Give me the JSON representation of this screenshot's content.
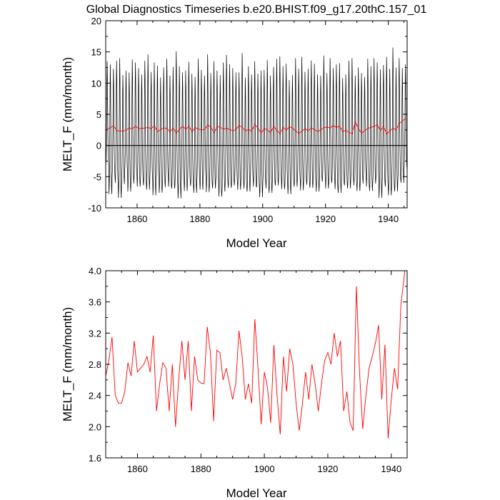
{
  "figure": {
    "title": "Global Diagnostics Timeseries b.e20.BHIST.f09_g17.20thC.157_01"
  },
  "chart_data": [
    {
      "type": "line",
      "title": "Global Diagnostics Timeseries b.e20.BHIST.f09_g17.20thC.157_01",
      "xlabel": "Model Year",
      "ylabel": "MELT_F (mm/month)",
      "xlim": [
        1850,
        1946
      ],
      "ylim": [
        -10,
        20
      ],
      "xticks": [
        1860,
        1880,
        1900,
        1920,
        1940
      ],
      "yticks": [
        -10,
        -5,
        0,
        5,
        10,
        15,
        20
      ],
      "zero_line": true,
      "series": [
        {
          "kind": "monthly",
          "color": "#000000",
          "x_start": 1850.04,
          "step": 0.08333,
          "peaks": [
            13.5,
            13.0,
            12.3,
            13.6,
            14.0,
            11.3,
            12.0,
            11.7,
            13.8,
            13.3,
            12.4,
            11.4,
            13.6,
            14.6,
            11.8,
            13.3,
            12.8,
            10.9,
            12.5,
            13.9,
            11.2,
            12.6,
            15.1,
            12.7,
            11.7,
            12.0,
            13.4,
            11.5,
            11.0,
            13.9,
            12.1,
            11.2,
            14.6,
            11.6,
            13.5,
            12.0,
            11.3,
            13.3,
            14.5,
            13.0,
            12.4,
            11.7,
            11.7,
            14.8,
            10.9,
            12.7,
            11.4,
            13.5,
            11.5,
            12.0,
            12.1,
            13.7,
            11.2,
            12.6,
            13.9,
            14.3,
            12.7,
            13.1,
            10.5,
            11.3,
            14.0,
            12.3,
            14.2,
            11.8,
            12.3,
            13.6,
            13.1,
            11.4,
            11.2,
            14.4,
            11.6,
            14.0,
            12.4,
            13.0,
            13.2,
            10.8,
            11.4,
            13.6,
            14.0,
            11.2,
            12.5,
            11.6,
            11.0,
            13.9,
            12.7,
            14.0,
            13.3,
            12.2,
            12.9,
            14.2,
            12.3,
            15.7,
            12.5,
            14.0,
            12.4,
            13.0
          ],
          "troughs": [
            -3.2,
            -7.8,
            -5.0,
            -6.0,
            -8.4,
            -6.2,
            -4.2,
            -7.4,
            -6.1,
            -5.1,
            -6.6,
            -5.9,
            -6.4,
            -7.1,
            -5.5,
            -8.0,
            -5.6,
            -7.6,
            -6.7,
            -5.3,
            -6.6,
            -6.9,
            -6.4,
            -8.5,
            -5.8,
            -7.3,
            -6.1,
            -6.5,
            -7.6,
            -5.8,
            -7.1,
            -5.4,
            -7.5,
            -6.4,
            -6.9,
            -5.8,
            -8.2,
            -7.4,
            -6.2,
            -6.8,
            -6.4,
            -5.9,
            -7.1,
            -6.1,
            -6.9,
            -7.4,
            -5.5,
            -6.6,
            -6.7,
            -8.3,
            -5.9,
            -6.9,
            -7.6,
            -6.2,
            -6.4,
            -5.5,
            -7.0,
            -6.5,
            -7.8,
            -6.3,
            -6.6,
            -5.7,
            -7.2,
            -5.8,
            -6.3,
            -6.8,
            -6.1,
            -7.4,
            -5.8,
            -5.4,
            -6.9,
            -6.0,
            -5.6,
            -7.0,
            -7.6,
            -6.1,
            -6.4,
            -6.9,
            -5.6,
            -6.4,
            -7.3,
            -6.1,
            -5.0,
            -6.6,
            -7.3,
            -6.1,
            -5.4,
            -8.4,
            -6.0,
            -6.6,
            -8.0,
            -6.7,
            -7.4,
            -5.5,
            -6.0,
            -3.8
          ]
        },
        {
          "kind": "annual_mean",
          "color": "#ff0000",
          "x": [
            1850,
            1851,
            1852,
            1853,
            1854,
            1855,
            1856,
            1857,
            1858,
            1859,
            1860,
            1861,
            1862,
            1863,
            1864,
            1865,
            1866,
            1867,
            1868,
            1869,
            1870,
            1871,
            1872,
            1873,
            1874,
            1875,
            1876,
            1877,
            1878,
            1879,
            1880,
            1881,
            1882,
            1883,
            1884,
            1885,
            1886,
            1887,
            1888,
            1889,
            1890,
            1891,
            1892,
            1893,
            1894,
            1895,
            1896,
            1897,
            1898,
            1899,
            1900,
            1901,
            1902,
            1903,
            1904,
            1905,
            1906,
            1907,
            1908,
            1909,
            1910,
            1911,
            1912,
            1913,
            1914,
            1915,
            1916,
            1917,
            1918,
            1919,
            1920,
            1921,
            1922,
            1923,
            1924,
            1925,
            1926,
            1927,
            1928,
            1929,
            1930,
            1931,
            1932,
            1933,
            1934,
            1935,
            1936,
            1937,
            1938,
            1939,
            1940,
            1941,
            1942,
            1943,
            1944,
            1945
          ],
          "values": [
            2.65,
            2.85,
            3.15,
            2.4,
            2.3,
            2.3,
            2.45,
            2.82,
            2.65,
            3.1,
            2.7,
            2.75,
            2.8,
            2.9,
            2.7,
            3.17,
            2.2,
            2.55,
            2.82,
            2.75,
            2.2,
            2.8,
            2.0,
            2.6,
            3.1,
            2.6,
            3.1,
            2.2,
            2.9,
            2.6,
            2.56,
            2.55,
            3.28,
            2.95,
            2.07,
            2.98,
            2.95,
            2.6,
            2.75,
            2.55,
            2.35,
            2.56,
            3.23,
            2.9,
            2.35,
            2.55,
            2.3,
            3.38,
            2.75,
            2.03,
            2.7,
            2.5,
            2.05,
            3.05,
            2.4,
            1.9,
            2.9,
            2.45,
            3.0,
            2.8,
            2.3,
            1.95,
            2.3,
            2.7,
            2.35,
            2.8,
            2.55,
            2.2,
            2.55,
            2.85,
            2.95,
            2.8,
            3.2,
            2.9,
            3.1,
            2.2,
            2.45,
            2.05,
            1.95,
            3.8,
            2.7,
            1.97,
            2.4,
            2.75,
            2.9,
            3.07,
            3.3,
            2.35,
            3.05,
            1.85,
            2.35,
            2.75,
            2.48,
            3.55,
            3.9,
            4.35
          ]
        }
      ]
    },
    {
      "type": "line",
      "title": "",
      "xlabel": "Model Year",
      "ylabel": "MELT_F (mm/month)",
      "xlim": [
        1850,
        1945
      ],
      "ylim": [
        1.6,
        4.0
      ],
      "xticks": [
        1860,
        1880,
        1900,
        1920,
        1940
      ],
      "yticks": [
        "1.6",
        "2.0",
        "2.4",
        "2.8",
        "3.2",
        "3.6",
        "4.0"
      ],
      "series": [
        {
          "kind": "annual_mean",
          "color": "#ff0000",
          "x": [
            1850,
            1851,
            1852,
            1853,
            1854,
            1855,
            1856,
            1857,
            1858,
            1859,
            1860,
            1861,
            1862,
            1863,
            1864,
            1865,
            1866,
            1867,
            1868,
            1869,
            1870,
            1871,
            1872,
            1873,
            1874,
            1875,
            1876,
            1877,
            1878,
            1879,
            1880,
            1881,
            1882,
            1883,
            1884,
            1885,
            1886,
            1887,
            1888,
            1889,
            1890,
            1891,
            1892,
            1893,
            1894,
            1895,
            1896,
            1897,
            1898,
            1899,
            1900,
            1901,
            1902,
            1903,
            1904,
            1905,
            1906,
            1907,
            1908,
            1909,
            1910,
            1911,
            1912,
            1913,
            1914,
            1915,
            1916,
            1917,
            1918,
            1919,
            1920,
            1921,
            1922,
            1923,
            1924,
            1925,
            1926,
            1927,
            1928,
            1929,
            1930,
            1931,
            1932,
            1933,
            1934,
            1935,
            1936,
            1937,
            1938,
            1939,
            1940,
            1941,
            1942,
            1943,
            1944,
            1945
          ],
          "values": [
            2.65,
            2.85,
            3.15,
            2.4,
            2.3,
            2.3,
            2.45,
            2.82,
            2.65,
            3.1,
            2.7,
            2.75,
            2.8,
            2.9,
            2.7,
            3.17,
            2.2,
            2.55,
            2.82,
            2.75,
            2.2,
            2.8,
            2.0,
            2.6,
            3.1,
            2.6,
            3.1,
            2.2,
            2.9,
            2.6,
            2.56,
            2.55,
            3.28,
            2.95,
            2.07,
            2.98,
            2.95,
            2.6,
            2.75,
            2.55,
            2.35,
            2.56,
            3.23,
            2.9,
            2.35,
            2.55,
            2.3,
            3.38,
            2.75,
            2.03,
            2.7,
            2.5,
            2.05,
            3.05,
            2.4,
            1.9,
            2.9,
            2.45,
            3.0,
            2.8,
            2.3,
            1.95,
            2.3,
            2.7,
            2.35,
            2.8,
            2.55,
            2.2,
            2.55,
            2.85,
            2.95,
            2.8,
            3.2,
            2.9,
            3.1,
            2.2,
            2.45,
            2.05,
            1.95,
            3.8,
            2.7,
            1.97,
            2.4,
            2.75,
            2.9,
            3.07,
            3.3,
            2.35,
            3.05,
            1.85,
            2.35,
            2.75,
            2.48,
            3.55,
            3.9,
            4.35
          ]
        }
      ]
    }
  ]
}
